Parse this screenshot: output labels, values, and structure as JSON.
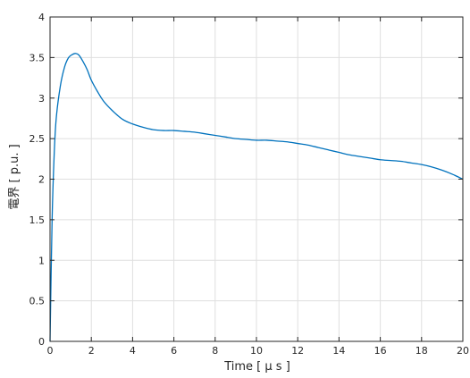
{
  "chart_data": {
    "type": "line",
    "title": "",
    "xlabel": "Time [ μ s ]",
    "ylabel": "電界 [ p.u. ]",
    "xlim": [
      0,
      20
    ],
    "ylim": [
      0,
      4
    ],
    "xticks": [
      0,
      2,
      4,
      6,
      8,
      10,
      12,
      14,
      16,
      18,
      20
    ],
    "yticks": [
      0,
      0.5,
      1,
      1.5,
      2,
      2.5,
      3,
      3.5,
      4
    ],
    "xtick_labels": [
      "0",
      "2",
      "4",
      "6",
      "8",
      "10",
      "12",
      "14",
      "16",
      "18",
      "20"
    ],
    "ytick_labels": [
      "0",
      "0.5",
      "1",
      "1.5",
      "2",
      "2.5",
      "3",
      "3.5",
      "4"
    ],
    "grid": true,
    "legend": "none",
    "line_color": "#0072BD",
    "series": [
      {
        "x": [
          0,
          0.1,
          0.2,
          0.3,
          0.5,
          0.7,
          0.9,
          1.1,
          1.25,
          1.4,
          1.6,
          1.8,
          2.0,
          2.3,
          2.6,
          3.0,
          3.5,
          4.0,
          4.5,
          5.0,
          5.5,
          6.0,
          6.5,
          7.0,
          7.5,
          8.0,
          8.5,
          9.0,
          9.5,
          10.0,
          10.5,
          11.0,
          11.5,
          12.0,
          12.5,
          13.0,
          13.5,
          14.0,
          14.5,
          15.0,
          15.5,
          16.0,
          16.5,
          17.0,
          17.5,
          18.0,
          18.5,
          19.0,
          19.5,
          20.0
        ],
        "y": [
          0,
          1.5,
          2.3,
          2.75,
          3.15,
          3.38,
          3.5,
          3.54,
          3.55,
          3.53,
          3.45,
          3.35,
          3.22,
          3.08,
          2.96,
          2.85,
          2.74,
          2.68,
          2.64,
          2.61,
          2.6,
          2.6,
          2.59,
          2.58,
          2.56,
          2.54,
          2.52,
          2.5,
          2.49,
          2.48,
          2.48,
          2.47,
          2.46,
          2.44,
          2.42,
          2.39,
          2.36,
          2.33,
          2.3,
          2.28,
          2.26,
          2.24,
          2.23,
          2.22,
          2.2,
          2.18,
          2.15,
          2.11,
          2.06,
          2.0
        ]
      }
    ]
  }
}
